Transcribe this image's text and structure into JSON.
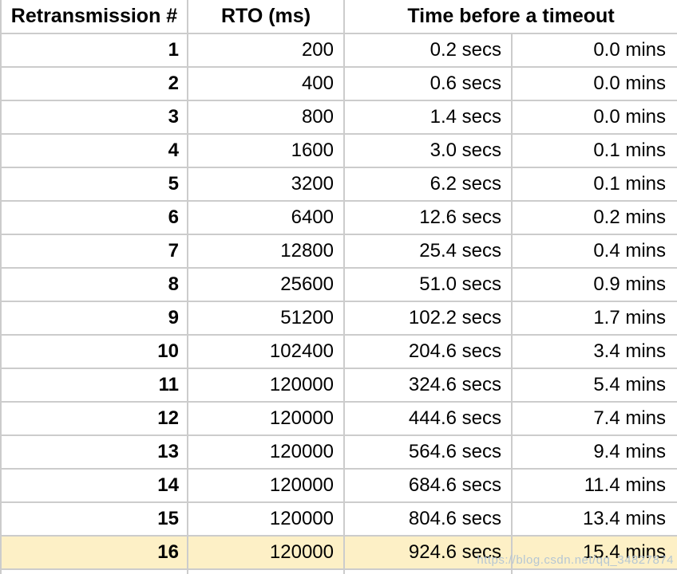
{
  "table": {
    "headers": [
      "Retransmission #",
      "RTO (ms)",
      "Time before a timeout"
    ],
    "highlight_color": "#fdf0c6",
    "border_color": "#cccccc",
    "rows": [
      {
        "n": "1",
        "rto": "200",
        "secs": "0.2 secs",
        "mins": "0.0 mins",
        "highlight": false
      },
      {
        "n": "2",
        "rto": "400",
        "secs": "0.6 secs",
        "mins": "0.0 mins",
        "highlight": false
      },
      {
        "n": "3",
        "rto": "800",
        "secs": "1.4 secs",
        "mins": "0.0 mins",
        "highlight": false
      },
      {
        "n": "4",
        "rto": "1600",
        "secs": "3.0 secs",
        "mins": "0.1 mins",
        "highlight": false
      },
      {
        "n": "5",
        "rto": "3200",
        "secs": "6.2 secs",
        "mins": "0.1 mins",
        "highlight": false
      },
      {
        "n": "6",
        "rto": "6400",
        "secs": "12.6 secs",
        "mins": "0.2 mins",
        "highlight": false
      },
      {
        "n": "7",
        "rto": "12800",
        "secs": "25.4 secs",
        "mins": "0.4 mins",
        "highlight": false
      },
      {
        "n": "8",
        "rto": "25600",
        "secs": "51.0 secs",
        "mins": "0.9 mins",
        "highlight": false
      },
      {
        "n": "9",
        "rto": "51200",
        "secs": "102.2 secs",
        "mins": "1.7 mins",
        "highlight": false
      },
      {
        "n": "10",
        "rto": "102400",
        "secs": "204.6 secs",
        "mins": "3.4 mins",
        "highlight": false
      },
      {
        "n": "11",
        "rto": "120000",
        "secs": "324.6 secs",
        "mins": "5.4 mins",
        "highlight": false
      },
      {
        "n": "12",
        "rto": "120000",
        "secs": "444.6 secs",
        "mins": "7.4 mins",
        "highlight": false
      },
      {
        "n": "13",
        "rto": "120000",
        "secs": "564.6 secs",
        "mins": "9.4 mins",
        "highlight": false
      },
      {
        "n": "14",
        "rto": "120000",
        "secs": "684.6 secs",
        "mins": "11.4 mins",
        "highlight": false
      },
      {
        "n": "15",
        "rto": "120000",
        "secs": "804.6 secs",
        "mins": "13.4 mins",
        "highlight": false
      },
      {
        "n": "16",
        "rto": "120000",
        "secs": "924.6 secs",
        "mins": "15.4 mins",
        "highlight": true
      }
    ]
  },
  "watermark": {
    "text": "https://blog.csdn.net/qq_34827874"
  },
  "chart_data": {
    "type": "table",
    "title": "TCP retransmission timeout schedule",
    "columns": [
      "Retransmission #",
      "RTO (ms)",
      "Time before a timeout (secs)",
      "Time before a timeout (mins)"
    ],
    "rows": [
      [
        1,
        200,
        0.2,
        0.0
      ],
      [
        2,
        400,
        0.6,
        0.0
      ],
      [
        3,
        800,
        1.4,
        0.0
      ],
      [
        4,
        1600,
        3.0,
        0.1
      ],
      [
        5,
        3200,
        6.2,
        0.1
      ],
      [
        6,
        6400,
        12.6,
        0.2
      ],
      [
        7,
        12800,
        25.4,
        0.4
      ],
      [
        8,
        25600,
        51.0,
        0.9
      ],
      [
        9,
        51200,
        102.2,
        1.7
      ],
      [
        10,
        102400,
        204.6,
        3.4
      ],
      [
        11,
        120000,
        324.6,
        5.4
      ],
      [
        12,
        120000,
        444.6,
        7.4
      ],
      [
        13,
        120000,
        564.6,
        9.4
      ],
      [
        14,
        120000,
        684.6,
        11.4
      ],
      [
        15,
        120000,
        804.6,
        13.4
      ],
      [
        16,
        120000,
        924.6,
        15.4
      ]
    ],
    "layout": {
      "merged_header_spans_columns": [
        3,
        4
      ],
      "highlighted_row_index": 16,
      "grid": true
    }
  }
}
